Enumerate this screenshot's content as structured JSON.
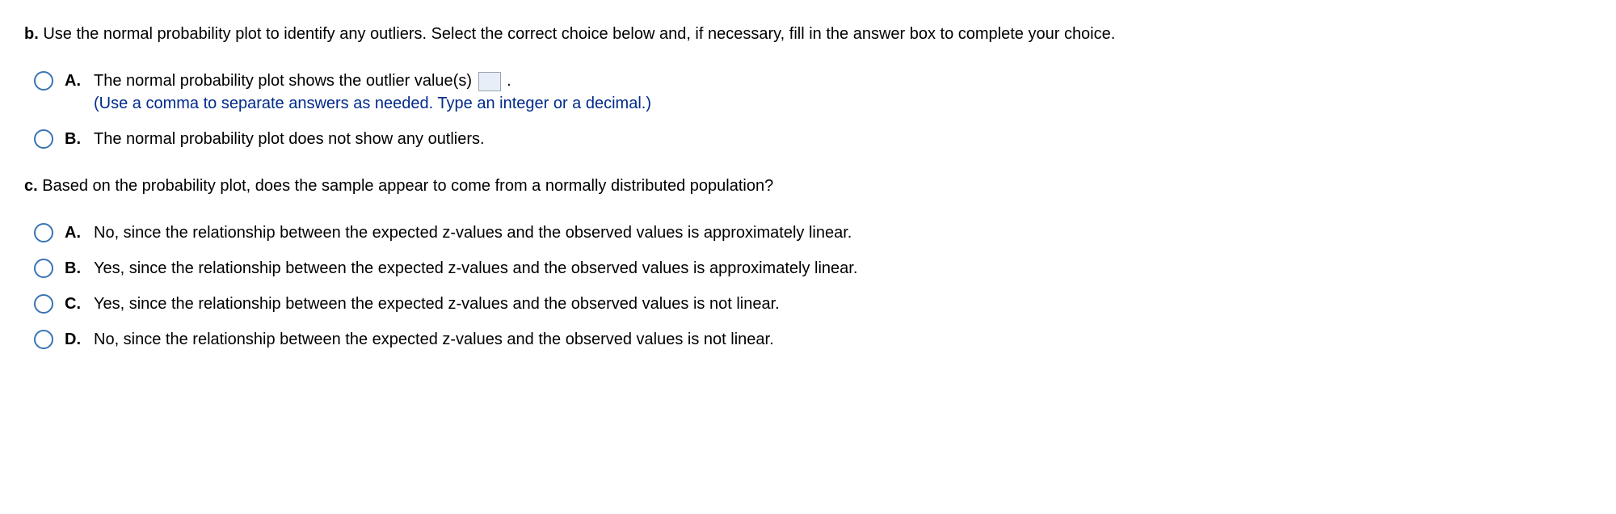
{
  "question_b": {
    "letter": "b.",
    "prompt": "Use the normal probability plot to identify any outliers. Select the correct choice below and, if necessary, fill in the answer box to complete your choice.",
    "options": [
      {
        "letter": "A.",
        "text_before_box": "The normal probability plot shows the outlier value(s) ",
        "text_after_box": " .",
        "hint": "(Use a comma to separate answers as needed. Type an integer or a decimal.)"
      },
      {
        "letter": "B.",
        "text": "The normal probability plot does not show any outliers."
      }
    ]
  },
  "question_c": {
    "letter": "c.",
    "prompt": "Based on the probability plot, does the sample appear to come from a normally distributed population?",
    "options": [
      {
        "letter": "A.",
        "text": "No, since the relationship between the expected z-values and the observed values is approximately linear."
      },
      {
        "letter": "B.",
        "text": "Yes, since the relationship between the expected z-values and the observed values is approximately linear."
      },
      {
        "letter": "C.",
        "text": "Yes, since the relationship between the expected z-values and the observed values is not linear."
      },
      {
        "letter": "D.",
        "text": "No, since the relationship between the expected z-values and the observed values is not linear."
      }
    ]
  }
}
